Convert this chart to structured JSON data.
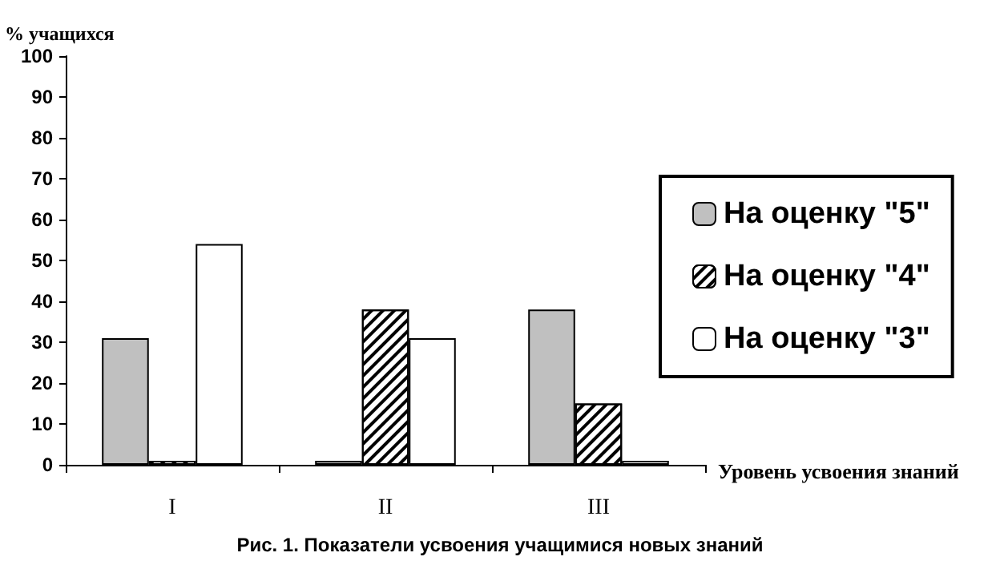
{
  "chart_data": {
    "type": "bar",
    "ylabel": "% учащихся",
    "xlabel": "Уровень усвоения знаний",
    "annotations": [
      "Рис. 1. Показатели усвоения учащимися новых знаний"
    ],
    "categories": [
      "I",
      "II",
      "III"
    ],
    "series": [
      {
        "name": "На оценку \"5\"",
        "color": "#c0c0c0",
        "values": [
          31,
          1,
          38
        ]
      },
      {
        "name": "На оценку \"4\"",
        "color": "#000000",
        "values": [
          1,
          38,
          15
        ]
      },
      {
        "name": "На оценку \"3\"",
        "color": "#ffffff",
        "values": [
          54,
          31,
          1
        ]
      }
    ],
    "ylim": [
      0,
      100
    ],
    "yticks": [
      0,
      10,
      20,
      30,
      40,
      50,
      60,
      70,
      80,
      90,
      100
    ],
    "grid": false,
    "legend": "right"
  }
}
